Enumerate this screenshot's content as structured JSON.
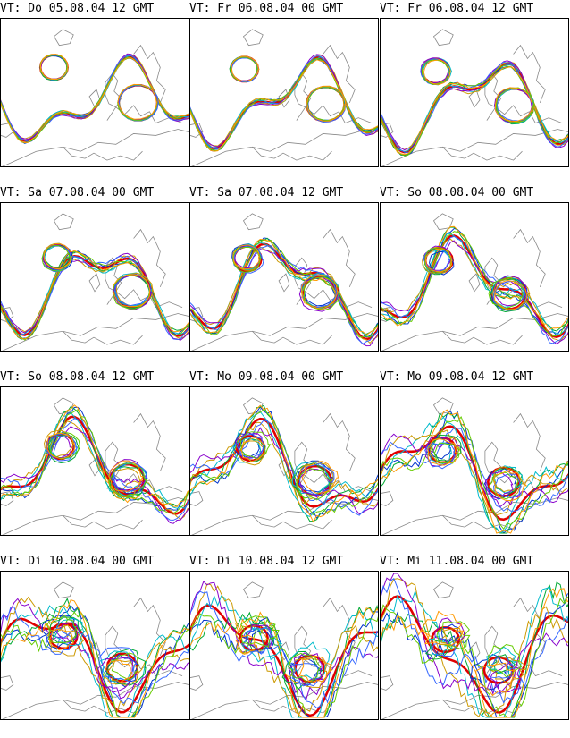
{
  "figure": {
    "panels": [
      {
        "id": "p1",
        "label": "VT: Do 05.08.04 12 GMT",
        "spread": 0.8
      },
      {
        "id": "p2",
        "label": "VT: Fr 06.08.04 00 GMT",
        "spread": 1.0
      },
      {
        "id": "p3",
        "label": "VT: Fr 06.08.04 12 GMT",
        "spread": 1.3
      },
      {
        "id": "p4",
        "label": "VT: Sa 07.08.04 00 GMT",
        "spread": 1.7
      },
      {
        "id": "p5",
        "label": "VT: Sa 07.08.04 12 GMT",
        "spread": 2.2
      },
      {
        "id": "p6",
        "label": "VT: So 08.08.04 00 GMT",
        "spread": 2.8
      },
      {
        "id": "p7",
        "label": "VT: So 08.08.04 12 GMT",
        "spread": 3.6
      },
      {
        "id": "p8",
        "label": "VT: Mo 09.08.04 00 GMT",
        "spread": 4.6
      },
      {
        "id": "p9",
        "label": "VT: Mo 09.08.04 12 GMT",
        "spread": 5.8
      },
      {
        "id": "p10",
        "label": "VT: Di 10.08.04 00 GMT",
        "spread": 7.2
      },
      {
        "id": "p11",
        "label": "VT: Di 10.08.04 12 GMT",
        "spread": 8.6
      },
      {
        "id": "p12",
        "label": "VT: Mi 11.08.04 00 GMT",
        "spread": 10.0
      }
    ],
    "colors": {
      "control": "#e00000",
      "members": [
        "#0033cc",
        "#00aa33",
        "#00bbcc",
        "#cc9900",
        "#8800cc",
        "#3366ff",
        "#66cc00",
        "#ff9900"
      ],
      "coast": "#888888"
    }
  }
}
